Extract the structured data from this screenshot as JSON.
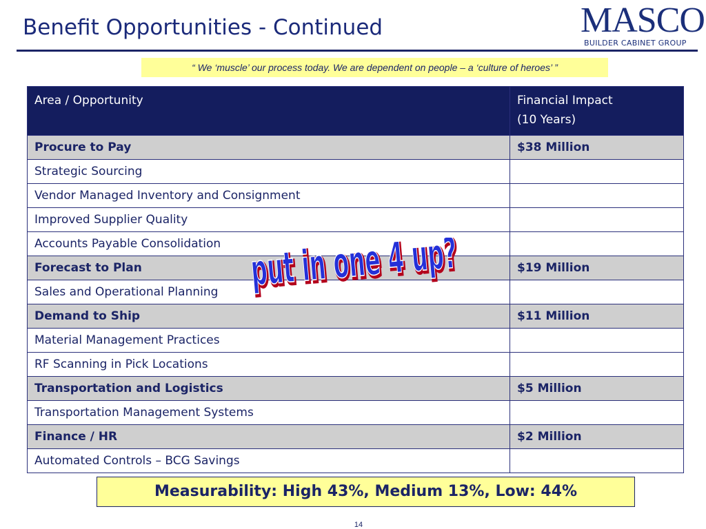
{
  "slide": {
    "title": "Benefit Opportunities - Continued",
    "quote": "“ We ‘muscle’ our process today.  We are dependent on people – a ‘culture of heroes’ ”",
    "page_number": "14"
  },
  "logo": {
    "word": "MASCO",
    "subtitle": "BUILDER CABINET GROUP"
  },
  "table": {
    "headers": [
      "Area / Opportunity",
      "Financial Impact",
      "(10 Years)"
    ],
    "rows": [
      {
        "label": "Procure to Pay",
        "impact": "$38 Million",
        "type": "category"
      },
      {
        "label": "Strategic Sourcing",
        "impact": "",
        "type": "item"
      },
      {
        "label": "Vendor Managed Inventory and Consignment",
        "impact": "",
        "type": "item"
      },
      {
        "label": "Improved Supplier Quality",
        "impact": "",
        "type": "item"
      },
      {
        "label": "Accounts Payable Consolidation",
        "impact": "",
        "type": "item"
      },
      {
        "label": "Forecast to Plan",
        "impact": "$19 Million",
        "type": "category"
      },
      {
        "label": "Sales and Operational Planning",
        "impact": "",
        "type": "item"
      },
      {
        "label": "Demand to Ship",
        "impact": "$11 Million",
        "type": "category"
      },
      {
        "label": "Material Management Practices",
        "impact": "",
        "type": "item"
      },
      {
        "label": "RF Scanning in Pick Locations",
        "impact": "",
        "type": "item"
      },
      {
        "label": "Transportation and Logistics",
        "impact": "$5 Million",
        "type": "category"
      },
      {
        "label": "Transportation Management Systems",
        "impact": "",
        "type": "item"
      },
      {
        "label": "Finance / HR",
        "impact": "$2 Million",
        "type": "category"
      },
      {
        "label": "Automated Controls – BCG Savings",
        "impact": "",
        "type": "item"
      }
    ]
  },
  "overlay_text": "put in one 4 up?",
  "measurability": "Measurability:  High 43%, Medium 13%, Low: 44%",
  "colors": {
    "navy": "#141d5e",
    "text_blue": "#1b2466",
    "category_gray": "#cfcfcf",
    "highlight_yellow": "#ffff99",
    "overlay_blue": "#2430d8",
    "overlay_shadow": "#b3001b"
  }
}
